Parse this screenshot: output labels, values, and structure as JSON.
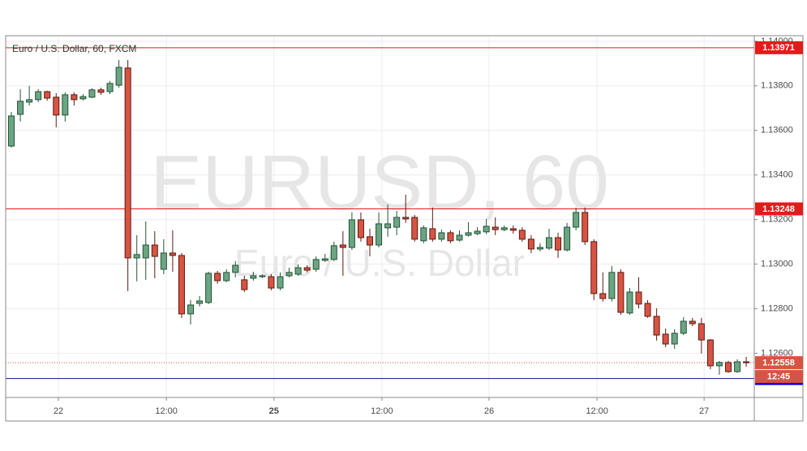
{
  "chart_data": {
    "type": "candlestick",
    "title": "Euro / U.S. Dollar, 60, FXCM",
    "watermark": "EURUSD, 60",
    "watermark_subtitle": "Euro / U.S. Dollar",
    "categories": [
      null,
      null,
      null,
      null,
      null,
      null,
      null,
      null,
      null,
      null,
      null,
      null,
      null,
      null,
      null,
      null,
      null,
      null,
      null,
      null,
      null,
      null,
      null,
      null,
      null,
      null,
      null,
      null,
      null,
      null,
      null,
      null,
      null,
      null,
      null,
      null,
      null,
      null,
      null,
      null,
      null,
      null,
      null,
      null,
      null,
      null,
      null,
      null,
      null,
      null,
      null,
      null,
      null,
      null,
      null,
      null,
      null,
      null,
      null,
      null,
      null,
      null,
      null,
      null,
      null,
      null,
      null,
      null,
      null,
      null,
      null,
      null,
      null,
      null,
      null,
      null,
      null,
      null,
      null,
      null,
      null,
      null,
      null
    ],
    "open": [
      1.1353,
      1.13672,
      1.13727,
      1.13738,
      1.13774,
      1.13749,
      1.13669,
      1.1376,
      1.13742,
      1.13749,
      1.13782,
      1.13774,
      1.13803,
      1.1388,
      1.13028,
      1.13028,
      1.13086,
      1.12977,
      1.1305,
      1.13039,
      1.12777,
      1.12824,
      1.12828,
      1.12959,
      1.12926,
      1.12963,
      1.1293,
      1.12937,
      1.12944,
      1.12944,
      1.12893,
      1.12948,
      1.12955,
      1.12984,
      1.12977,
      1.13017,
      1.13021,
      1.13086,
      1.13075,
      1.13199,
      1.13123,
      1.13086,
      1.13163,
      1.13166,
      1.1321,
      1.1321,
      1.13105,
      1.13159,
      1.13112,
      1.13141,
      1.13108,
      1.1313,
      1.13137,
      1.13145,
      1.13166,
      1.13155,
      1.13159,
      1.13152,
      1.13112,
      1.13068,
      1.13072,
      1.13119,
      1.13064,
      1.13166,
      1.13232,
      1.13101,
      1.12868,
      1.12846,
      1.12963,
      1.12781,
      1.12875,
      1.12824,
      1.12766,
      1.12686,
      1.12642,
      1.1269,
      1.12744,
      1.12733,
      1.1266,
      1.12544,
      1.12559,
      1.12518,
      1.12562
    ],
    "high": [
      1.13683,
      1.13785,
      1.138,
      1.13785,
      1.13778,
      1.13767,
      1.13771,
      1.13771,
      1.13763,
      1.13789,
      1.13792,
      1.13822,
      1.13916,
      1.13916,
      1.1313,
      1.13192,
      1.13148,
      1.13112,
      1.13152,
      1.1305,
      1.12839,
      1.12857,
      1.12966,
      1.1297,
      1.12977,
      1.13014,
      1.12948,
      1.12966,
      1.12955,
      1.12955,
      1.12963,
      1.12984,
      1.12999,
      1.12995,
      1.13035,
      1.13046,
      1.13101,
      1.13148,
      1.13232,
      1.13232,
      1.13159,
      1.13232,
      1.13268,
      1.13239,
      1.13312,
      1.13221,
      1.13174,
      1.13254,
      1.13155,
      1.13152,
      1.13152,
      1.13188,
      1.13166,
      1.13203,
      1.1321,
      1.13174,
      1.13174,
      1.13166,
      1.1313,
      1.13094,
      1.13159,
      1.13141,
      1.13185,
      1.13254,
      1.13254,
      1.13112,
      1.12963,
      1.12992,
      1.12977,
      1.12893,
      1.12941,
      1.12839,
      1.12802,
      1.12711,
      1.12708,
      1.12762,
      1.12759,
      1.12759,
      1.12664,
      1.12566,
      1.12566,
      1.12573,
      1.12584
    ],
    "low": [
      1.13523,
      1.1364,
      1.13712,
      1.13727,
      1.13734,
      1.13614,
      1.1364,
      1.13712,
      1.13734,
      1.13745,
      1.1376,
      1.13763,
      1.13792,
      1.12879,
      1.12923,
      1.1293,
      1.12937,
      1.12955,
      1.12966,
      1.12759,
      1.1273,
      1.1281,
      1.12821,
      1.12912,
      1.12919,
      1.12941,
      1.12875,
      1.12926,
      1.12937,
      1.12883,
      1.12883,
      1.12941,
      1.12948,
      1.12963,
      1.12966,
      1.1301,
      1.13014,
      1.12948,
      1.13064,
      1.13101,
      1.13035,
      1.13075,
      1.13123,
      1.1313,
      1.13185,
      1.13101,
      1.13094,
      1.13101,
      1.13101,
      1.13094,
      1.13101,
      1.13123,
      1.1313,
      1.13134,
      1.1313,
      1.13148,
      1.13137,
      1.13101,
      1.1305,
      1.13057,
      1.13064,
      1.13028,
      1.13057,
      1.13152,
      1.13086,
      1.12839,
      1.12832,
      1.12832,
      1.12773,
      1.12773,
      1.12802,
      1.12759,
      1.12657,
      1.12628,
      1.1262,
      1.12682,
      1.12722,
      1.12599,
      1.12529,
      1.12504,
      1.12512,
      1.12512,
      1.1254
    ],
    "close": [
      1.13665,
      1.13731,
      1.13738,
      1.13774,
      1.13745,
      1.13669,
      1.1376,
      1.13738,
      1.13752,
      1.13782,
      1.13771,
      1.13811,
      1.13883,
      1.13028,
      1.13043,
      1.13086,
      1.13035,
      1.1305,
      1.13039,
      1.12777,
      1.12817,
      1.12835,
      1.12959,
      1.12926,
      1.12963,
      1.12995,
      1.12886,
      1.12948,
      1.12948,
      1.12893,
      1.12944,
      1.12963,
      1.12984,
      1.12973,
      1.13021,
      1.13024,
      1.13083,
      1.13075,
      1.13199,
      1.13119,
      1.13086,
      1.13181,
      1.13181,
      1.1321,
      1.13203,
      1.13112,
      1.13163,
      1.13112,
      1.13141,
      1.13105,
      1.1313,
      1.13141,
      1.13148,
      1.1317,
      1.13155,
      1.13163,
      1.13152,
      1.13112,
      1.13068,
      1.13075,
      1.13119,
      1.13064,
      1.13166,
      1.13232,
      1.13101,
      1.12868,
      1.12846,
      1.12963,
      1.12784,
      1.12875,
      1.12821,
      1.12766,
      1.12682,
      1.12642,
      1.1269,
      1.12744,
      1.12733,
      1.1266,
      1.12544,
      1.12559,
      1.12518,
      1.12562,
      1.12558
    ],
    "up_color": "#6ba583",
    "up_border": "#225437",
    "down_color": "#d75442",
    "down_border": "#5b1a13",
    "ylim": [
      1.12402,
      1.14025
    ],
    "yticks": [
      {
        "value": 1.126,
        "label": "1.12600"
      },
      {
        "value": 1.128,
        "label": "1.12800"
      },
      {
        "value": 1.13,
        "label": "1.13000"
      },
      {
        "value": 1.132,
        "label": "1.13200"
      },
      {
        "value": 1.134,
        "label": "1.13400"
      },
      {
        "value": 1.136,
        "label": "1.13600"
      },
      {
        "value": 1.138,
        "label": "1.13800"
      },
      {
        "value": 1.14,
        "label": "1.14000"
      }
    ],
    "xticks": [
      {
        "value": 5.25,
        "label": "22"
      },
      {
        "value": 17.3,
        "label": "12:00"
      },
      {
        "value": 29.3,
        "label": "25"
      },
      {
        "value": 41.35,
        "label": "12:00"
      },
      {
        "value": 53.3,
        "label": "26"
      },
      {
        "value": 65.35,
        "label": "12:00"
      },
      {
        "value": 77.3,
        "label": "27"
      }
    ],
    "grid": true,
    "lines": [
      {
        "value": 1.13971,
        "color": "#e31b1b"
      },
      {
        "value": 1.13248,
        "color": "#e31b1b"
      },
      {
        "value": 1.12487,
        "color": "#0b1280"
      }
    ],
    "line_label_colors": [
      "#e31b1b",
      "#e31b1b",
      "#0000e6"
    ],
    "last_price": 1.12558,
    "last_price_color": "#d75442",
    "countdown": "12:45"
  }
}
